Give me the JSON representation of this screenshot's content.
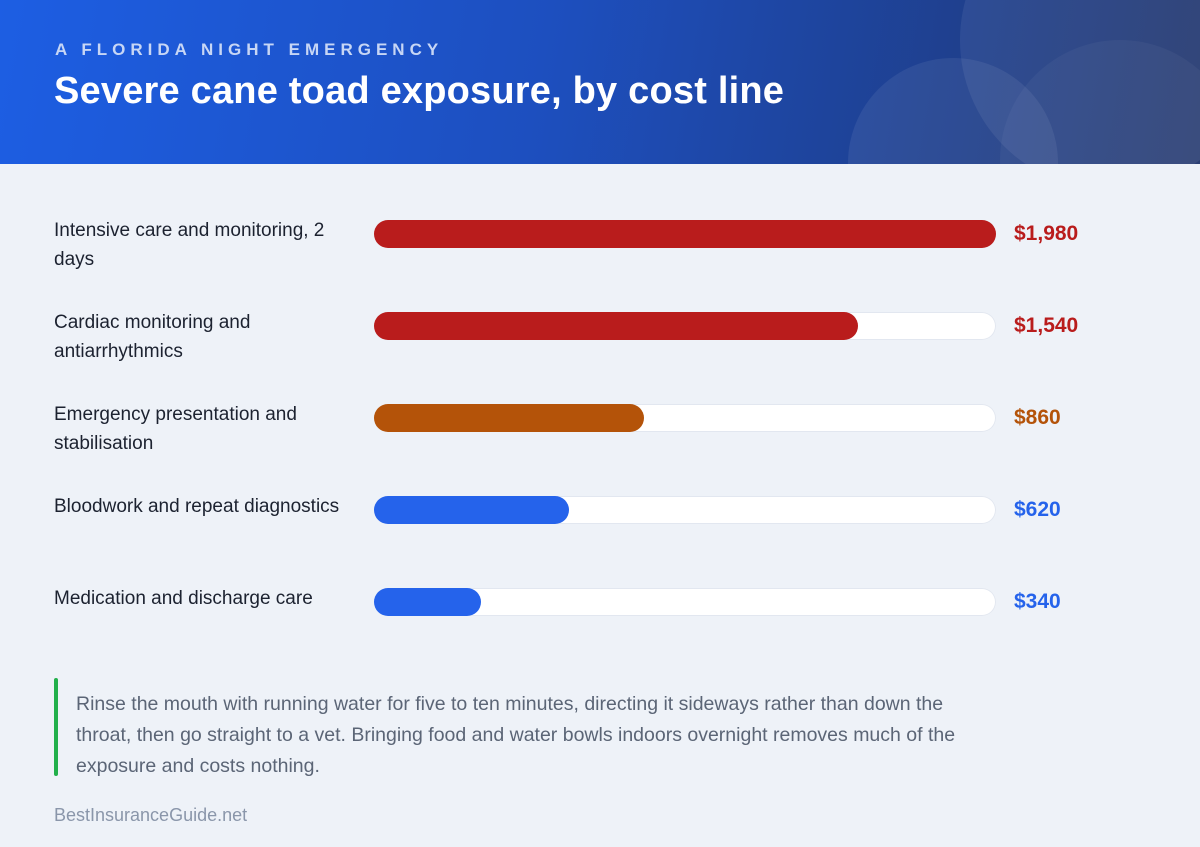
{
  "header": {
    "eyebrow": "A FLORIDA NIGHT EMERGENCY",
    "title": "Severe cane toad exposure, by cost line"
  },
  "chart_data": {
    "type": "bar",
    "orientation": "horizontal",
    "title": "Severe cane toad exposure, by cost line",
    "xlim": [
      0,
      1980
    ],
    "categories": [
      "Intensive care and monitoring, 2 days",
      "Cardiac monitoring and antiarrhythmics",
      "Emergency presentation and stabilisation",
      "Bloodwork and repeat diagnostics",
      "Medication and discharge care"
    ],
    "values": [
      1980,
      1540,
      860,
      620,
      340
    ],
    "value_labels": [
      "$1,980",
      "$1,540",
      "$860",
      "$620",
      "$340"
    ],
    "colors": [
      "#b91c1c",
      "#b91c1c",
      "#b45309",
      "#2563eb",
      "#2563eb"
    ]
  },
  "note": {
    "text": "Rinse the mouth with running water for five to ten minutes, directing it sideways rather than down the throat, then go straight to a vet. Bringing food and water bowls indoors overnight removes much of the exposure and costs nothing.",
    "accent_color": "#22b04b"
  },
  "source": "BestInsuranceGuide.net"
}
